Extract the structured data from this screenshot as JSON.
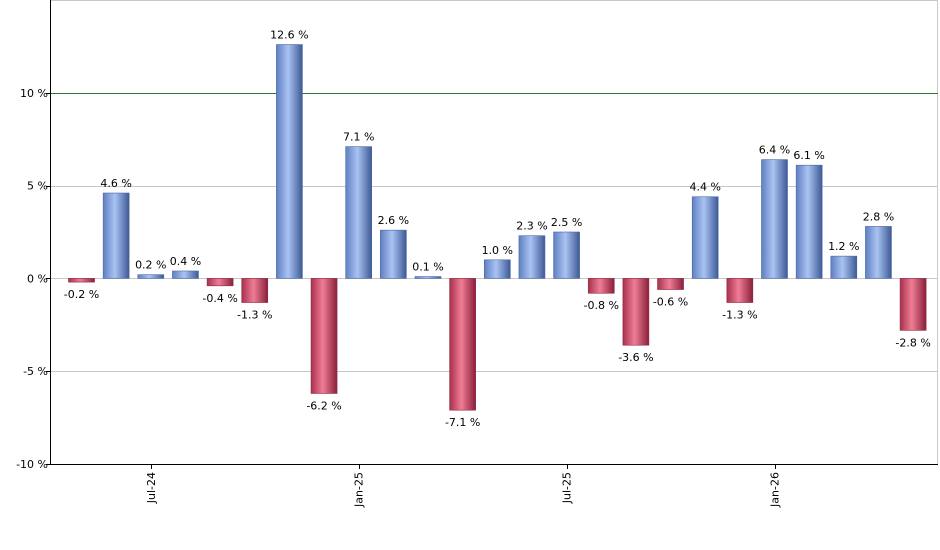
{
  "chart_data": {
    "type": "bar",
    "values": [
      -0.2,
      4.6,
      0.2,
      0.4,
      -0.4,
      -1.3,
      12.6,
      -6.2,
      7.1,
      2.6,
      0.1,
      -7.1,
      1.0,
      2.3,
      2.5,
      -0.8,
      -3.6,
      -0.6,
      4.4,
      -1.3,
      6.4,
      6.1,
      1.2,
      2.8,
      -2.8
    ],
    "labels": [
      "-0.2 %",
      "4.6 %",
      "0.2 %",
      "0.4 %",
      "-0.4 %",
      "-1.3 %",
      "12.6 %",
      "-6.2 %",
      "7.1 %",
      "2.6 %",
      "0.1 %",
      "-7.1 %",
      "1.0 %",
      "2.3 %",
      "2.5 %",
      "-0.8 %",
      "-3.6 %",
      "-0.6 %",
      "4.4 %",
      "-1.3 %",
      "6.4 %",
      "6.1 %",
      "1.2 %",
      "2.8 %",
      "-2.8 %"
    ],
    "x_ticks": [
      {
        "label": "Jul-24",
        "index": 2
      },
      {
        "label": "Jan-25",
        "index": 8
      },
      {
        "label": "Jul-25",
        "index": 14
      },
      {
        "label": "Jan-26",
        "index": 20
      }
    ],
    "y_ticks": [
      {
        "value": 10,
        "label": "10 %"
      },
      {
        "value": 5,
        "label": "5 %"
      },
      {
        "value": 0,
        "label": "0 %"
      },
      {
        "value": -5,
        "label": "-5 %"
      },
      {
        "value": -10,
        "label": "-10 %"
      }
    ],
    "ylim": [
      -10,
      15
    ],
    "reference_line": 10,
    "grid": true,
    "colors": {
      "positive": "#7f9fe0",
      "negative": "#c8405f",
      "reference": "#2e7d32",
      "grid": "#c8c8c8",
      "axis": "#000000"
    }
  }
}
